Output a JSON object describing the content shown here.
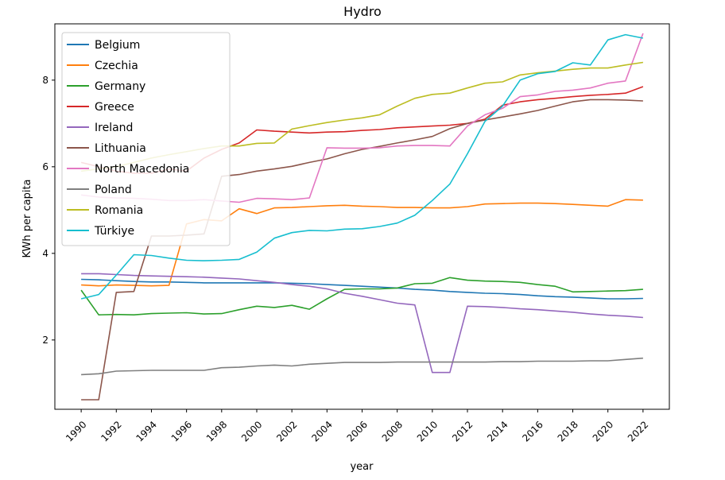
{
  "chart_data": {
    "type": "line",
    "title": "Hydro",
    "xlabel": "year",
    "ylabel": "KWh per capita",
    "xlim": [
      1988.5,
      2023.5
    ],
    "ylim": [
      0.4,
      9.3
    ],
    "xticks": [
      1990,
      1992,
      1994,
      1996,
      1998,
      2000,
      2002,
      2004,
      2006,
      2008,
      2010,
      2012,
      2014,
      2016,
      2018,
      2020,
      2022
    ],
    "yticks": [
      2,
      4,
      6,
      8
    ],
    "legend_position": "upper-left",
    "x": [
      1990,
      1991,
      1992,
      1993,
      1994,
      1995,
      1996,
      1997,
      1998,
      1999,
      2000,
      2001,
      2002,
      2003,
      2004,
      2005,
      2006,
      2007,
      2008,
      2009,
      2010,
      2011,
      2012,
      2013,
      2014,
      2015,
      2016,
      2017,
      2018,
      2019,
      2020,
      2021,
      2022
    ],
    "series": [
      {
        "name": "Belgium",
        "color": "#1f77b4",
        "values": [
          3.4,
          3.39,
          3.37,
          3.35,
          3.34,
          3.34,
          3.33,
          3.32,
          3.32,
          3.32,
          3.32,
          3.32,
          3.31,
          3.3,
          3.28,
          3.26,
          3.24,
          3.22,
          3.2,
          3.17,
          3.15,
          3.12,
          3.1,
          3.08,
          3.07,
          3.05,
          3.02,
          3.0,
          2.99,
          2.97,
          2.95,
          2.95,
          2.96
        ]
      },
      {
        "name": "Czechia",
        "color": "#ff7f0e",
        "values": [
          3.27,
          3.25,
          3.27,
          3.26,
          3.25,
          3.26,
          4.68,
          4.78,
          4.75,
          5.03,
          4.92,
          5.05,
          5.06,
          5.08,
          5.1,
          5.11,
          5.09,
          5.08,
          5.06,
          5.06,
          5.05,
          5.05,
          5.08,
          5.14,
          5.15,
          5.16,
          5.16,
          5.15,
          5.13,
          5.11,
          5.09,
          5.24,
          5.23
        ]
      },
      {
        "name": "Germany",
        "color": "#2ca02c",
        "values": [
          3.15,
          2.58,
          2.59,
          2.58,
          2.61,
          2.62,
          2.63,
          2.6,
          2.61,
          2.7,
          2.78,
          2.75,
          2.8,
          2.71,
          2.95,
          3.17,
          3.18,
          3.18,
          3.2,
          3.3,
          3.31,
          3.44,
          3.38,
          3.36,
          3.35,
          3.33,
          3.28,
          3.24,
          3.11,
          3.12,
          3.13,
          3.14,
          3.17
        ]
      },
      {
        "name": "Greece",
        "color": "#d62728",
        "values": [
          6.1,
          6.0,
          5.9,
          5.85,
          5.85,
          5.95,
          5.9,
          6.2,
          6.4,
          6.55,
          6.85,
          6.82,
          6.8,
          6.78,
          6.8,
          6.81,
          6.84,
          6.86,
          6.9,
          6.92,
          6.94,
          6.96,
          7.0,
          7.1,
          7.42,
          7.5,
          7.55,
          7.58,
          7.62,
          7.65,
          7.67,
          7.7,
          7.85
        ]
      },
      {
        "name": "Ireland",
        "color": "#9467bd",
        "values": [
          3.53,
          3.53,
          3.51,
          3.49,
          3.48,
          3.47,
          3.46,
          3.45,
          3.43,
          3.41,
          3.37,
          3.33,
          3.28,
          3.24,
          3.18,
          3.08,
          3.01,
          2.93,
          2.85,
          2.81,
          1.25,
          1.25,
          2.78,
          2.77,
          2.75,
          2.72,
          2.7,
          2.67,
          2.64,
          2.6,
          2.57,
          2.55,
          2.52
        ]
      },
      {
        "name": "Lithuania",
        "color": "#8c564b",
        "values": [
          0.62,
          0.62,
          3.1,
          3.12,
          4.4,
          4.4,
          4.42,
          4.45,
          5.78,
          5.82,
          5.9,
          5.95,
          6.01,
          6.1,
          6.18,
          6.3,
          6.4,
          6.47,
          6.55,
          6.62,
          6.7,
          6.88,
          7.0,
          7.08,
          7.15,
          7.22,
          7.3,
          7.4,
          7.5,
          7.55,
          7.55,
          7.54,
          7.52
        ]
      },
      {
        "name": "North Macedonia",
        "color": "#e377c2",
        "values": [
          5.35,
          5.3,
          5.28,
          5.27,
          5.25,
          5.22,
          5.22,
          5.24,
          5.21,
          5.18,
          5.27,
          5.26,
          5.24,
          5.28,
          6.44,
          6.43,
          6.43,
          6.44,
          6.48,
          6.49,
          6.49,
          6.48,
          6.94,
          7.2,
          7.35,
          7.62,
          7.66,
          7.74,
          7.77,
          7.82,
          7.93,
          7.98,
          9.08
        ]
      },
      {
        "name": "Poland",
        "color": "#7f7f7f",
        "values": [
          1.2,
          1.22,
          1.28,
          1.29,
          1.3,
          1.3,
          1.3,
          1.3,
          1.36,
          1.37,
          1.4,
          1.42,
          1.4,
          1.44,
          1.46,
          1.48,
          1.48,
          1.48,
          1.49,
          1.49,
          1.49,
          1.49,
          1.49,
          1.49,
          1.5,
          1.5,
          1.51,
          1.51,
          1.51,
          1.52,
          1.52,
          1.55,
          1.58
        ]
      },
      {
        "name": "Romania",
        "color": "#bcbd22",
        "values": [
          5.9,
          5.95,
          6.0,
          6.1,
          6.2,
          6.28,
          6.35,
          6.42,
          6.48,
          6.48,
          6.54,
          6.55,
          6.87,
          6.95,
          7.02,
          7.08,
          7.13,
          7.2,
          7.4,
          7.58,
          7.67,
          7.7,
          7.82,
          7.93,
          7.96,
          8.12,
          8.17,
          8.21,
          8.25,
          8.28,
          8.28,
          8.35,
          8.41
        ]
      },
      {
        "name": "Türkiye",
        "color": "#17becf",
        "values": [
          2.95,
          3.05,
          3.5,
          3.97,
          3.95,
          3.89,
          3.84,
          3.83,
          3.84,
          3.86,
          4.03,
          4.35,
          4.48,
          4.53,
          4.52,
          4.56,
          4.57,
          4.62,
          4.7,
          4.88,
          5.22,
          5.6,
          6.3,
          7.05,
          7.4,
          8.0,
          8.15,
          8.2,
          8.4,
          8.35,
          8.93,
          9.05,
          8.97
        ]
      }
    ]
  }
}
